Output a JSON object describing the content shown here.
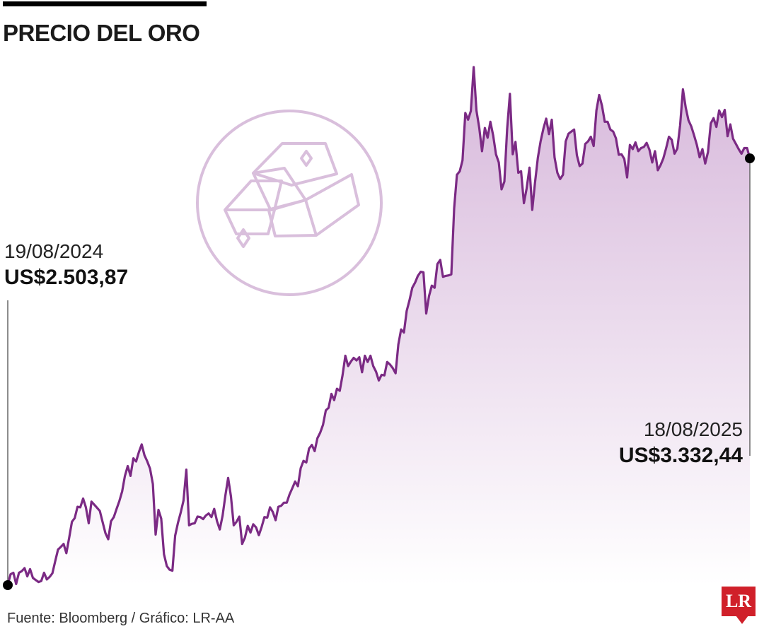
{
  "title": "PRECIO DEL ORO",
  "source": "Fuente: Bloomberg / Gráfico: LR-AA",
  "logo_text": "LR",
  "colors": {
    "line": "#7b2a84",
    "area_top": "#d7b8db",
    "icon": "#d9bfdc",
    "logo": "#d0202a"
  },
  "icon": "gold-bars-icon",
  "annotations": {
    "start": {
      "date": "19/08/2024",
      "value": "US$2.503,87"
    },
    "end": {
      "date": "18/08/2025",
      "value": "US$3.332,44"
    }
  },
  "chart_data": {
    "type": "area",
    "title": "PRECIO DEL ORO",
    "xlabel": "",
    "ylabel": "",
    "grid": false,
    "ylim": [
      2480,
      3500
    ],
    "x_range": [
      "19/08/2024",
      "18/08/2025"
    ],
    "series": [
      {
        "values": [
          2504,
          2525,
          2528,
          2506,
          2528,
          2531,
          2537,
          2521,
          2535,
          2518,
          2514,
          2510,
          2512,
          2528,
          2515,
          2520,
          2527,
          2550,
          2573,
          2578,
          2584,
          2566,
          2596,
          2627,
          2634,
          2656,
          2655,
          2672,
          2655,
          2624,
          2666,
          2660,
          2654,
          2648,
          2626,
          2605,
          2593,
          2628,
          2636,
          2652,
          2667,
          2686,
          2716,
          2735,
          2716,
          2750,
          2744,
          2762,
          2777,
          2756,
          2744,
          2730,
          2700,
          2602,
          2650,
          2633,
          2564,
          2541,
          2534,
          2532,
          2600,
          2625,
          2645,
          2668,
          2728,
          2620,
          2623,
          2624,
          2637,
          2636,
          2632,
          2639,
          2643,
          2636,
          2652,
          2628,
          2612,
          2639,
          2678,
          2712,
          2676,
          2620,
          2627,
          2637,
          2584,
          2596,
          2619,
          2606,
          2622,
          2616,
          2601,
          2617,
          2636,
          2635,
          2655,
          2646,
          2630,
          2656,
          2658,
          2664,
          2664,
          2680,
          2692,
          2705,
          2696,
          2731,
          2745,
          2742,
          2769,
          2776,
          2764,
          2789,
          2800,
          2815,
          2843,
          2848,
          2875,
          2863,
          2885,
          2881,
          2911,
          2949,
          2929,
          2938,
          2945,
          2940,
          2946,
          2917,
          2949,
          2937,
          2949,
          2929,
          2918,
          2901,
          2912,
          2911,
          2937,
          2932,
          2925,
          2915,
          2971,
          3000,
          2994,
          3036,
          3057,
          3081,
          3091,
          3104,
          3112,
          3111,
          3031,
          3065,
          3085,
          3081,
          3127,
          3135,
          3102,
          3104,
          3105,
          3107,
          3235,
          3300,
          3307,
          3328,
          3420,
          3407,
          3424,
          3509,
          3425,
          3391,
          3346,
          3391,
          3372,
          3403,
          3376,
          3340,
          3324,
          3272,
          3287,
          3389,
          3457,
          3340,
          3364,
          3304,
          3307,
          3245,
          3274,
          3314,
          3232,
          3285,
          3333,
          3365,
          3390,
          3409,
          3379,
          3407,
          3334,
          3304,
          3292,
          3300,
          3365,
          3380,
          3384,
          3388,
          3338,
          3317,
          3322,
          3360,
          3365,
          3374,
          3356,
          3425,
          3455,
          3434,
          3403,
          3403,
          3388,
          3384,
          3371,
          3339,
          3340,
          3331,
          3295,
          3358,
          3350,
          3363,
          3346,
          3352,
          3354,
          3362,
          3349,
          3324,
          3346,
          3309,
          3319,
          3332,
          3352,
          3374,
          3368,
          3341,
          3351,
          3396,
          3466,
          3431,
          3406,
          3394,
          3377,
          3358,
          3334,
          3350,
          3322,
          3344,
          3400,
          3410,
          3393,
          3425,
          3412,
          3426,
          3375,
          3398,
          3370,
          3360,
          3350,
          3341,
          3352,
          3352,
          3332
        ]
      }
    ]
  }
}
